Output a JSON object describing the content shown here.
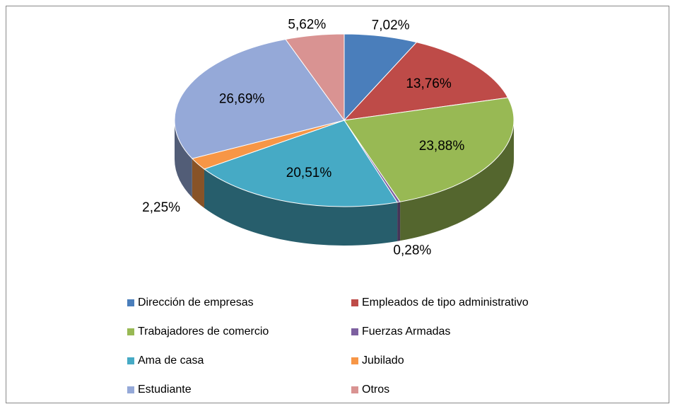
{
  "chart_data": {
    "type": "pie",
    "categories": [
      "Dirección de empresas",
      "Empleados de tipo administrativo",
      "Trabajadores de comercio",
      "Fuerzas Armadas",
      "Ama de casa",
      "Jubilado",
      "Estudiante",
      "Otros"
    ],
    "values": [
      7.02,
      13.76,
      23.88,
      0.28,
      20.51,
      2.25,
      26.69,
      5.62
    ],
    "value_labels": [
      "7,02%",
      "13,76%",
      "23,88%",
      "0,28%",
      "20,51%",
      "2,25%",
      "26,69%",
      "5,62%"
    ],
    "colors": [
      "#4a7ebb",
      "#be4b48",
      "#98b954",
      "#7d60a0",
      "#46aac5",
      "#f79646",
      "#95a9d8",
      "#d99392"
    ],
    "legend": "bottom",
    "three_d": true
  }
}
